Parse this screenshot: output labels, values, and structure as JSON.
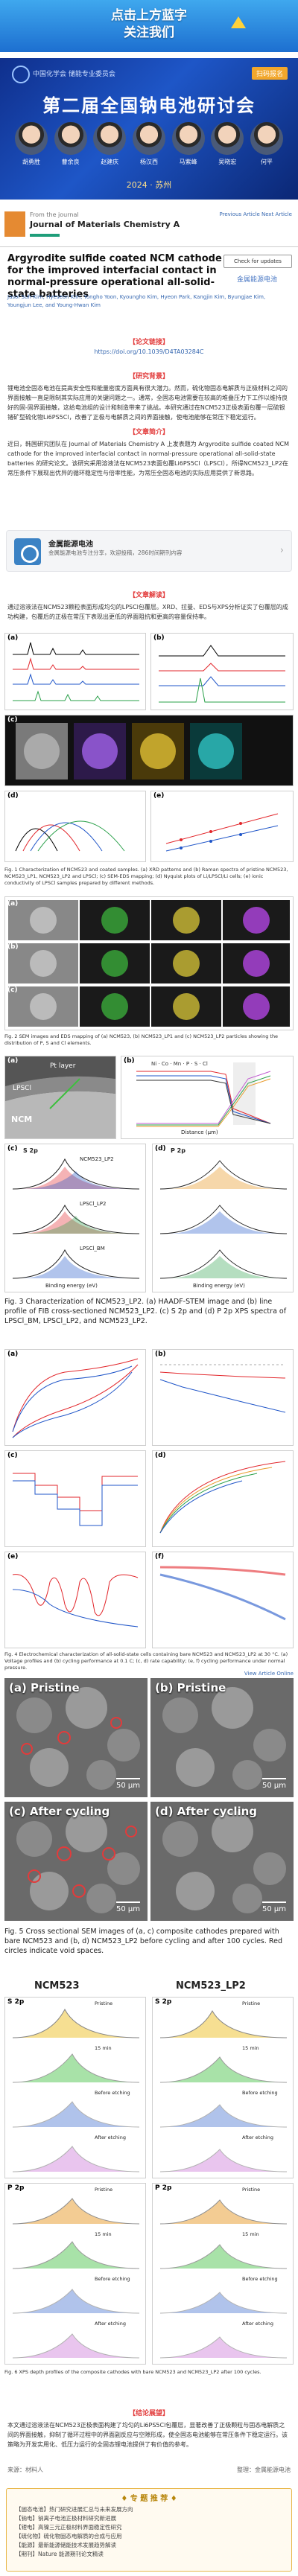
{
  "banner": {
    "title": "点击上方蓝字",
    "subtitle": "关注我们"
  },
  "conference": {
    "org": "中国化学会 储能专业委员会",
    "register": "扫码报名",
    "title": "第二届全国钠电池研讨会",
    "speakers": [
      "胡勇胜",
      "曹余良",
      "赵建庆",
      "杨汉西",
      "马紫峰",
      "吴晓宏",
      "何平"
    ],
    "date": "2024 · 苏州"
  },
  "journal": {
    "from": "From the journal",
    "name": "Journal of Materials Chemistry A",
    "links": "Previous Article    Next Article"
  },
  "article": {
    "title": "Argyrodite sulfide coated NCM cathode for the improved interfacial contact in normal-pressure operational all-solid-state batteries",
    "check_updates": "Check for updates",
    "watermark": "金属能源电池",
    "authors": "Jasol Suh-Kim, Hyeseon Kim, Yongho Yoon, Kyoungho Kim, Hyeon Park, Kangjin Kim, Byungjae Kim, Youngjun Lee, and Young-Hwan Kim"
  },
  "source": {
    "heading": "【论文链接】",
    "link": "https://doi.org/10.1039/D4TA03284C"
  },
  "abstract": {
    "heading": "【研究背景】",
    "text": "锂电池全固态电池在提高安全性和能量密度方面具有很大潜力。然而，硫化物固态电解质与正极材料之间的界面接触一直是限制其实际应用的关键问题之一。通常，全固态电池需要在较高的堆叠压力下工作以维持良好的固-固界面接触，这给电池组的设计和制造带来了挑战。本研究通过在NCM523正极表面包覆一层硫银锗矿型硫化物Li6PS5Cl，改善了正极与电解质之间的界面接触，使电池能够在常压下稳定运行。",
    "heading2": "【文章简介】",
    "text2": "近日，韩国研究团队在 Journal of Materials Chemistry A 上发表题为 Argyrodite sulfide coated NCM cathode for the improved interfacial contact in normal-pressure operational all-solid-state batteries 的研究论文。该研究采用溶液法在NCM523表面包覆Li6PS5Cl（LPSCl），所得NCM523_LP2在常压条件下展现出优异的循环稳定性与倍率性能，为常压全固态电池的实际应用提供了新思路。"
  },
  "account": {
    "name": "金属能源电池",
    "desc": "金属能源电池专注分享，欢迎投稿，286时间期刊内容",
    "chev": "›"
  },
  "results": {
    "heading": "【文章解读】",
    "text": "通过溶液法在NCM523颗粒表面形成均匀的LPSCl包覆层。XRD、拉曼、EDS与XPS分析证实了包覆层的成功构建，包覆后的正极在常压下表现出更低的界面阻抗和更高的容量保持率。"
  },
  "fig1": {
    "caption": "Fig. 1 Characterization of NCM523 and coated samples. (a) XRD patterns and (b) Raman spectra of pristine NCM523, NCM523_LP1, NCM523_LP2 and LPSCl; (c) SEM-EDS mapping; (d) Nyquist plots of Li/LPSCl/Li cells; (e) ionic conductivity of LPSCl samples prepared by different methods.",
    "labels": [
      "(a)",
      "(b)",
      "(c)",
      "(d)",
      "(e)"
    ],
    "leg": [
      "NCM523",
      "NCM523_LP1",
      "NCM523_LP2",
      "LPSCl"
    ]
  },
  "fig2": {
    "caption": "Fig. 2 SEM images and EDS mapping of (a) NCM523, (b) NCM523_LP1 and (c) NCM523_LP2 particles showing the distribution of P, S and Cl elements.",
    "labels": [
      "(a)",
      "(b)",
      "(c)"
    ]
  },
  "fig3": {
    "labels": [
      "(a)",
      "(b)",
      "(c)",
      "(d)",
      "(e)",
      "(f)"
    ],
    "pt_layer": "Pt layer",
    "lpscl": "LPSCl",
    "ncm": "NCM",
    "line_leg": [
      "Ni",
      "Co",
      "Mn",
      "P",
      "S",
      "Cl"
    ],
    "xaxis": "Distance (μm)",
    "yaxis_left": "Norm. CS Count (a.u.)",
    "yaxis_right": "Norm. SE Count (a.u.)",
    "c_title": "S 2p",
    "d_title": "P 2p",
    "e_title": "S 2p",
    "f_title": "P 2p",
    "c_rows": [
      "NCM523_LP2",
      "LPSCl_LP2",
      "LPSCl_BM"
    ],
    "binding": "Binding energy (eV)",
    "intensity": "Intensity (a.u.)",
    "caption": "Fig. 3 Characterization of NCM523_LP2. (a) HAADF-STEM image and (b) line profile of FIB cross-sectioned NCM523_LP2. (c) S 2p and (d) P 2p XPS spectra of LPSCl_BM, LPSCl_LP2, and NCM523_LP2."
  },
  "fig4": {
    "labels": [
      "(a)",
      "(b)",
      "(c)",
      "(d)",
      "(e)",
      "(f)"
    ],
    "caption": "Fig. 4 Electrochemical characterization of all-solid-state cells containing bare NCM523 and NCM523_LP2 at 30 °C. (a) Voltage profiles and (b) cycling performance at 0.1 C; (c, d) rate capability; (e, f) cycling performance under normal pressure."
  },
  "fig5": {
    "labels": [
      "(a) Pristine",
      "(b) Pristine",
      "(c) After cycling",
      "(d) After cycling"
    ],
    "scale": "50 μm",
    "heading": [
      "NCM523",
      "NCM523_LP2"
    ],
    "caption": "Fig. 5 Cross sectional SEM images of (a, c) composite cathodes prepared with bare NCM523 and (b, d) NCM523_LP2 before cycling and after 100 cycles. Red circles indicate void spaces.",
    "viewed": "View Article Online"
  },
  "fig6": {
    "cols": [
      "NCM523",
      "NCM523_LP2"
    ],
    "rows": [
      "S 2p",
      "P 2p"
    ],
    "states": [
      "Pristine",
      "15 min",
      "Before etching",
      "After etching"
    ],
    "caption": "Fig. 6 XPS depth profiles of the composite cathodes with bare NCM523 and NCM523_LP2 after 100 cycles."
  },
  "conclusion": {
    "heading": "【结论展望】",
    "text": "本文通过溶液法在NCM523正极表面构建了均匀的Li6PS5Cl包覆层，显著改善了正极颗粒与固态电解质之间的界面接触，抑制了循环过程中的界面副反应与空隙形成，使全固态电池能够在常压条件下稳定运行。该策略为开发实用化、低压力运行的全固态锂电池提供了有价值的参考。"
  },
  "footer": {
    "left": "来源：材料人",
    "right": "整理：金属能源电池"
  },
  "recommend": {
    "heading": "♦ 专 题 推 荐 ♦",
    "items": [
      "【固态电池】热门研究进展汇总与未来发展方向",
      "【钠电】钠离子电池正极材料研究新进展",
      "【锂电】高镍三元正极材料界面稳定性研究",
      "【硫化物】硫化物固态电解质的合成与应用",
      "【能源】最新能源储能技术发展趋势解读",
      "【期刊】Nature 能源期刊论文精读"
    ]
  },
  "colors": {
    "accent_blue": "#1d6fd0",
    "red_heading": "#e23b3b",
    "navy": "#0f2f8c",
    "link": "#3567b0"
  }
}
